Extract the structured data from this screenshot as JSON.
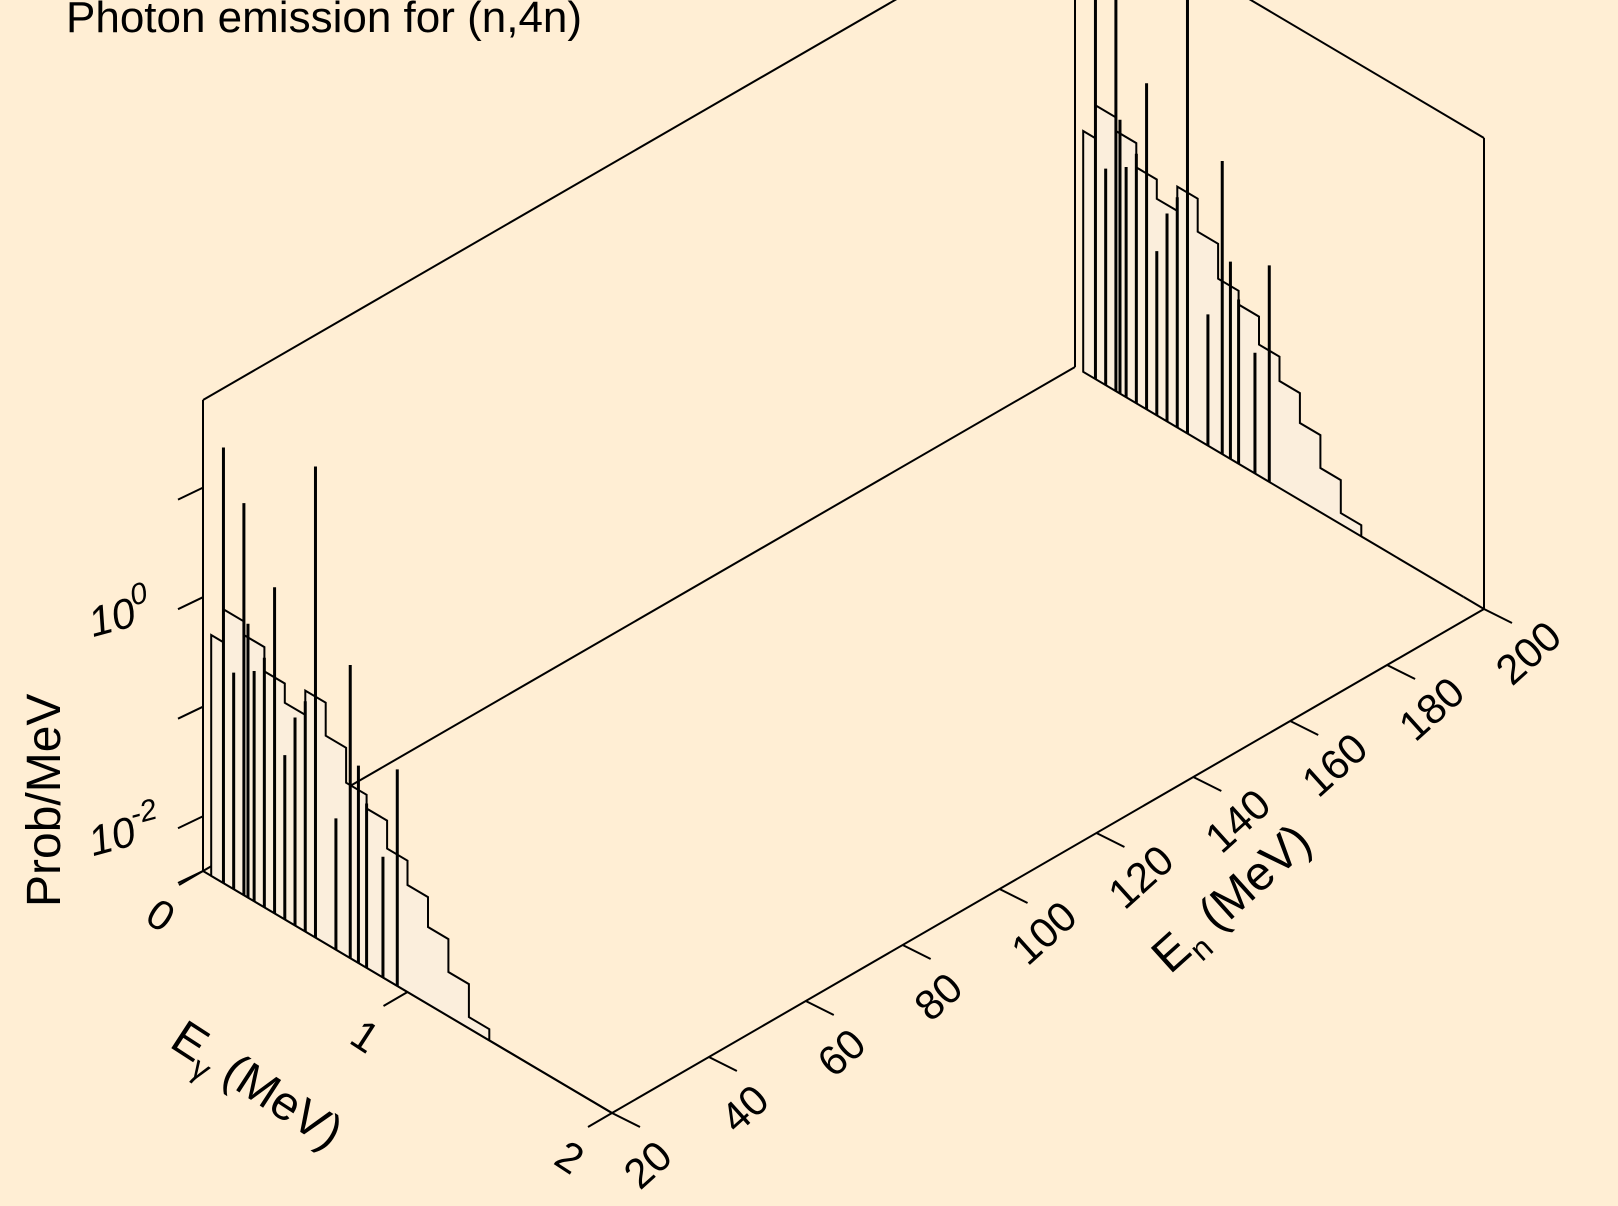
{
  "chart_data": {
    "type": "3d-waterfall",
    "title": "Photon emission for (n,4n)",
    "zlabel": "Prob/MeV",
    "xlabel_main": "E",
    "xlabel_sub": "γ",
    "xlabel_unit": " (MeV)",
    "ylabel_main": "E",
    "ylabel_sub": "n",
    "ylabel_unit": " (MeV)",
    "zscale": "log",
    "x_range": [
      0,
      2
    ],
    "y_range": [
      20,
      200
    ],
    "x_ticks": [
      "0",
      "1",
      "2"
    ],
    "y_ticks": [
      "20",
      "40",
      "60",
      "80",
      "100",
      "120",
      "140",
      "160",
      "180",
      "200"
    ],
    "z_ticks": [
      {
        "base": "10",
        "exp": "-2"
      },
      {
        "base": "10",
        "exp": "0"
      }
    ],
    "slices": [
      {
        "en": 20,
        "continuum": [
          [
            0.04,
            0.5
          ],
          [
            0.1,
            1.0
          ],
          [
            0.2,
            0.75
          ],
          [
            0.3,
            0.45
          ],
          [
            0.4,
            0.3
          ],
          [
            0.5,
            0.5
          ],
          [
            0.6,
            0.25
          ],
          [
            0.7,
            0.12
          ],
          [
            0.8,
            0.09
          ],
          [
            0.9,
            0.05
          ],
          [
            1.0,
            0.03
          ],
          [
            1.1,
            0.016
          ],
          [
            1.2,
            0.008
          ],
          [
            1.3,
            0.004
          ],
          [
            1.4,
            0.002
          ],
          [
            1.5,
            0.0008
          ],
          [
            1.6,
            0.0003
          ],
          [
            1.7,
            0.0001
          ],
          [
            1.8,
            5e-05
          ]
        ],
        "lines": [
          [
            0.1,
            30
          ],
          [
            0.15,
            0.3
          ],
          [
            0.2,
            12
          ],
          [
            0.22,
            1.0
          ],
          [
            0.25,
            0.4
          ],
          [
            0.3,
            0.6
          ],
          [
            0.35,
            3
          ],
          [
            0.4,
            0.1
          ],
          [
            0.45,
            0.25
          ],
          [
            0.5,
            0.4
          ],
          [
            0.55,
            80
          ],
          [
            0.65,
            0.05
          ],
          [
            0.72,
            1.5
          ],
          [
            0.76,
            0.2
          ],
          [
            0.8,
            0.1
          ],
          [
            0.88,
            0.04
          ],
          [
            0.95,
            0.3
          ]
        ]
      },
      {
        "en": 200,
        "continuum": [
          [
            0.04,
            0.5
          ],
          [
            0.1,
            1.0
          ],
          [
            0.2,
            0.75
          ],
          [
            0.3,
            0.45
          ],
          [
            0.4,
            0.3
          ],
          [
            0.5,
            0.5
          ],
          [
            0.6,
            0.25
          ],
          [
            0.7,
            0.12
          ],
          [
            0.8,
            0.09
          ],
          [
            0.9,
            0.05
          ],
          [
            1.0,
            0.03
          ],
          [
            1.1,
            0.016
          ],
          [
            1.2,
            0.008
          ],
          [
            1.3,
            0.004
          ],
          [
            1.4,
            0.002
          ],
          [
            1.5,
            0.0008
          ],
          [
            1.6,
            0.0003
          ],
          [
            1.7,
            0.0001
          ],
          [
            1.8,
            5e-05
          ]
        ],
        "lines": [
          [
            0.1,
            30
          ],
          [
            0.15,
            0.3
          ],
          [
            0.2,
            12
          ],
          [
            0.22,
            1.0
          ],
          [
            0.25,
            0.4
          ],
          [
            0.3,
            0.6
          ],
          [
            0.35,
            3
          ],
          [
            0.4,
            0.1
          ],
          [
            0.45,
            0.25
          ],
          [
            0.5,
            0.4
          ],
          [
            0.55,
            80
          ],
          [
            0.65,
            0.05
          ],
          [
            0.72,
            1.5
          ],
          [
            0.76,
            0.2
          ],
          [
            0.8,
            0.1
          ],
          [
            0.88,
            0.04
          ],
          [
            0.95,
            0.3
          ]
        ]
      }
    ]
  }
}
